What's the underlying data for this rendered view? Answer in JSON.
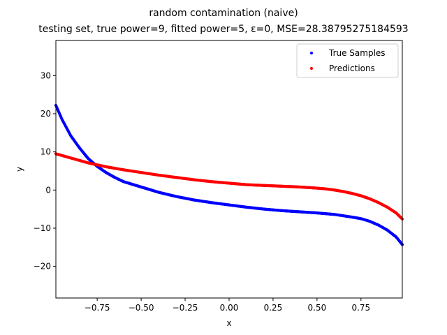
{
  "chart_data": {
    "type": "scatter",
    "title": "random contamination (naive)",
    "subtitle": "testing set, true power=9, fitted power=5, ε=0, MSE=28.38795275184593",
    "xlabel": "x",
    "ylabel": "y",
    "xlim": [
      -0.985,
      0.985
    ],
    "ylim": [
      -28.3,
      39.2
    ],
    "xticks": [
      -0.75,
      -0.5,
      -0.25,
      0.0,
      0.25,
      0.5,
      0.75
    ],
    "xtick_labels": [
      "−0.75",
      "−0.50",
      "−0.25",
      "0.00",
      "0.25",
      "0.50",
      "0.75"
    ],
    "yticks": [
      30,
      20,
      10,
      0,
      -10,
      -20
    ],
    "ytick_labels": [
      "30",
      "20",
      "10",
      "0",
      "−10",
      "−20"
    ],
    "grid": false,
    "legend_position": "top-right",
    "series": [
      {
        "name": "True Samples",
        "color": "#0000ff",
        "x": [
          -0.985,
          -0.95,
          -0.9,
          -0.85,
          -0.8,
          -0.75,
          -0.7,
          -0.65,
          -0.6,
          -0.5,
          -0.4,
          -0.3,
          -0.2,
          -0.1,
          0.0,
          0.1,
          0.2,
          0.3,
          0.4,
          0.5,
          0.6,
          0.7,
          0.75,
          0.8,
          0.85,
          0.9,
          0.95,
          0.985
        ],
        "y": [
          22.2,
          18.5,
          14.2,
          11.0,
          8.2,
          6.2,
          4.6,
          3.3,
          2.2,
          0.8,
          -0.6,
          -1.7,
          -2.6,
          -3.3,
          -3.9,
          -4.5,
          -5.0,
          -5.4,
          -5.7,
          -6.0,
          -6.4,
          -7.1,
          -7.5,
          -8.2,
          -9.2,
          -10.5,
          -12.3,
          -14.3
        ]
      },
      {
        "name": "Predictions",
        "color": "#ff0000",
        "x": [
          -0.985,
          -0.9,
          -0.8,
          -0.7,
          -0.6,
          -0.5,
          -0.4,
          -0.3,
          -0.2,
          -0.1,
          0.0,
          0.1,
          0.2,
          0.3,
          0.4,
          0.5,
          0.55,
          0.6,
          0.65,
          0.7,
          0.75,
          0.8,
          0.85,
          0.9,
          0.95,
          0.985
        ],
        "y": [
          9.5,
          8.4,
          7.1,
          6.1,
          5.3,
          4.6,
          3.9,
          3.3,
          2.7,
          2.2,
          1.8,
          1.4,
          1.2,
          1.0,
          0.8,
          0.5,
          0.3,
          0.0,
          -0.4,
          -0.9,
          -1.5,
          -2.3,
          -3.3,
          -4.5,
          -6.0,
          -7.6
        ]
      }
    ]
  }
}
